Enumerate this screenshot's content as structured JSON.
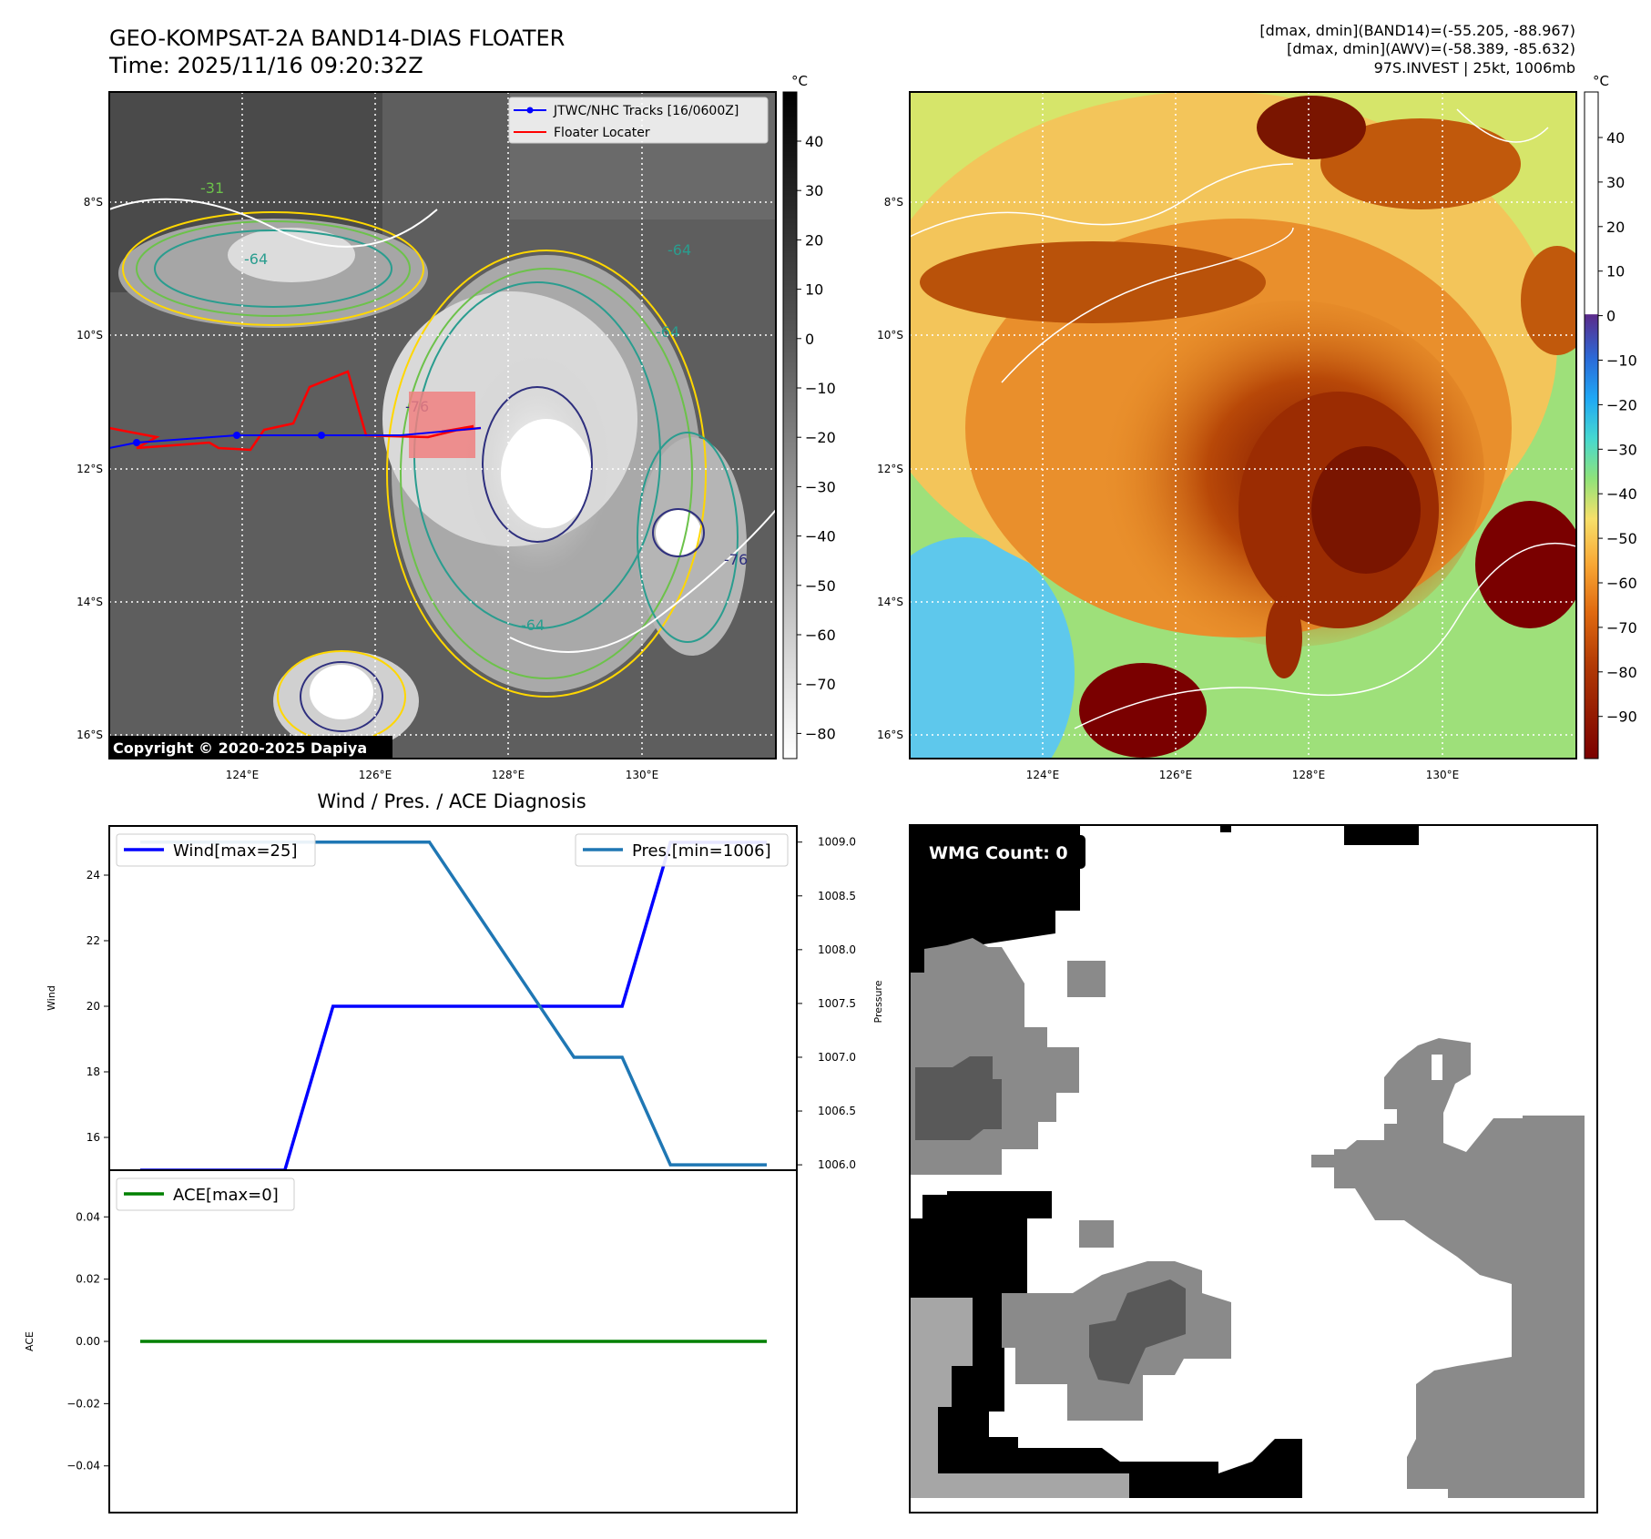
{
  "header": {
    "title_line1": "GEO-KOMPSAT-2A BAND14-DIAS FLOATER",
    "title_line2": "Time: 2025/11/16 09:20:32Z",
    "info_line1": "[dmax, dmin](BAND14)=(-55.205, -88.967)",
    "info_line2": "[dmax, dmin](AWV)=(-58.389, -85.632)",
    "info_line3": "97S.INVEST | 25kt, 1006mb"
  },
  "ir_panel": {
    "copyright": "Copyright © 2020-2025 Dapiya",
    "legend": {
      "track_label": "JTWC/NHC Tracks [16/0600Z]",
      "locater_label": "Floater Locater"
    },
    "contour_labels": [
      "-64",
      "-64",
      "-64",
      "-31",
      "-76",
      "-76",
      "-64"
    ],
    "colorbar_unit": "°C",
    "colorbar_ticks": [
      "40",
      "30",
      "20",
      "10",
      "0",
      "−10",
      "−20",
      "−30",
      "−40",
      "−50",
      "−60",
      "−70",
      "−80"
    ],
    "colors": {
      "track": "#0000ff",
      "locater": "#ff0000",
      "locater_box": "#f08080"
    }
  },
  "awv_panel": {
    "colorbar_unit": "°C",
    "colorbar_ticks": [
      "40",
      "30",
      "20",
      "10",
      "0",
      "−10",
      "−20",
      "−30",
      "−40",
      "−50",
      "−60",
      "−70",
      "−80",
      "−90"
    ]
  },
  "map_axes": {
    "x_ticks": [
      "124°E",
      "126°E",
      "128°E",
      "130°E"
    ],
    "y_ticks": [
      "8°S",
      "10°S",
      "12°S",
      "14°S",
      "16°S"
    ]
  },
  "wmg_panel": {
    "label": "WMG Count: 0",
    "colors": {
      "black": "#000000",
      "dark": "#595959",
      "mid": "#8a8a8a",
      "light": "#a6a6a6"
    }
  },
  "chart_data": [
    {
      "type": "line",
      "title": "Wind / Pres. / ACE Diagnosis",
      "ylabel": "Wind",
      "y2label": "Pressure",
      "x": [
        0,
        1,
        2,
        3,
        4,
        5,
        6,
        7,
        8,
        9,
        10,
        11,
        12,
        13
      ],
      "ylim": [
        15,
        25.5
      ],
      "yticks": [
        "16",
        "18",
        "20",
        "22",
        "24"
      ],
      "y2lim": [
        1005.95,
        1009.15
      ],
      "y2ticks": [
        "1006.0",
        "1006.5",
        "1007.0",
        "1007.5",
        "1008.0",
        "1008.5",
        "1009.0"
      ],
      "series": [
        {
          "name": "Wind[max=25]",
          "axis": "left",
          "color": "#0000ff",
          "values": [
            15,
            15,
            15,
            15,
            20,
            20,
            20,
            20,
            20,
            20,
            20,
            25,
            25,
            25
          ]
        },
        {
          "name": "Pres.[min=1006]",
          "axis": "right",
          "color": "#1f77b4",
          "values": [
            1009,
            1009,
            1009,
            1009,
            1009,
            1009,
            1009,
            1008.333,
            1007.667,
            1007,
            1007,
            1006,
            1006,
            1006
          ]
        }
      ]
    },
    {
      "type": "line",
      "ylabel": "ACE",
      "x": [
        0,
        1,
        2,
        3,
        4,
        5,
        6,
        7,
        8,
        9,
        10,
        11,
        12,
        13
      ],
      "ylim": [
        -0.055,
        0.055
      ],
      "yticks": [
        "0.04",
        "0.02",
        "0.00",
        "−0.02",
        "−0.04"
      ],
      "series": [
        {
          "name": "ACE[max=0]",
          "axis": "left",
          "color": "#008000",
          "values": [
            0,
            0,
            0,
            0,
            0,
            0,
            0,
            0,
            0,
            0,
            0,
            0,
            0,
            0
          ]
        }
      ]
    }
  ]
}
